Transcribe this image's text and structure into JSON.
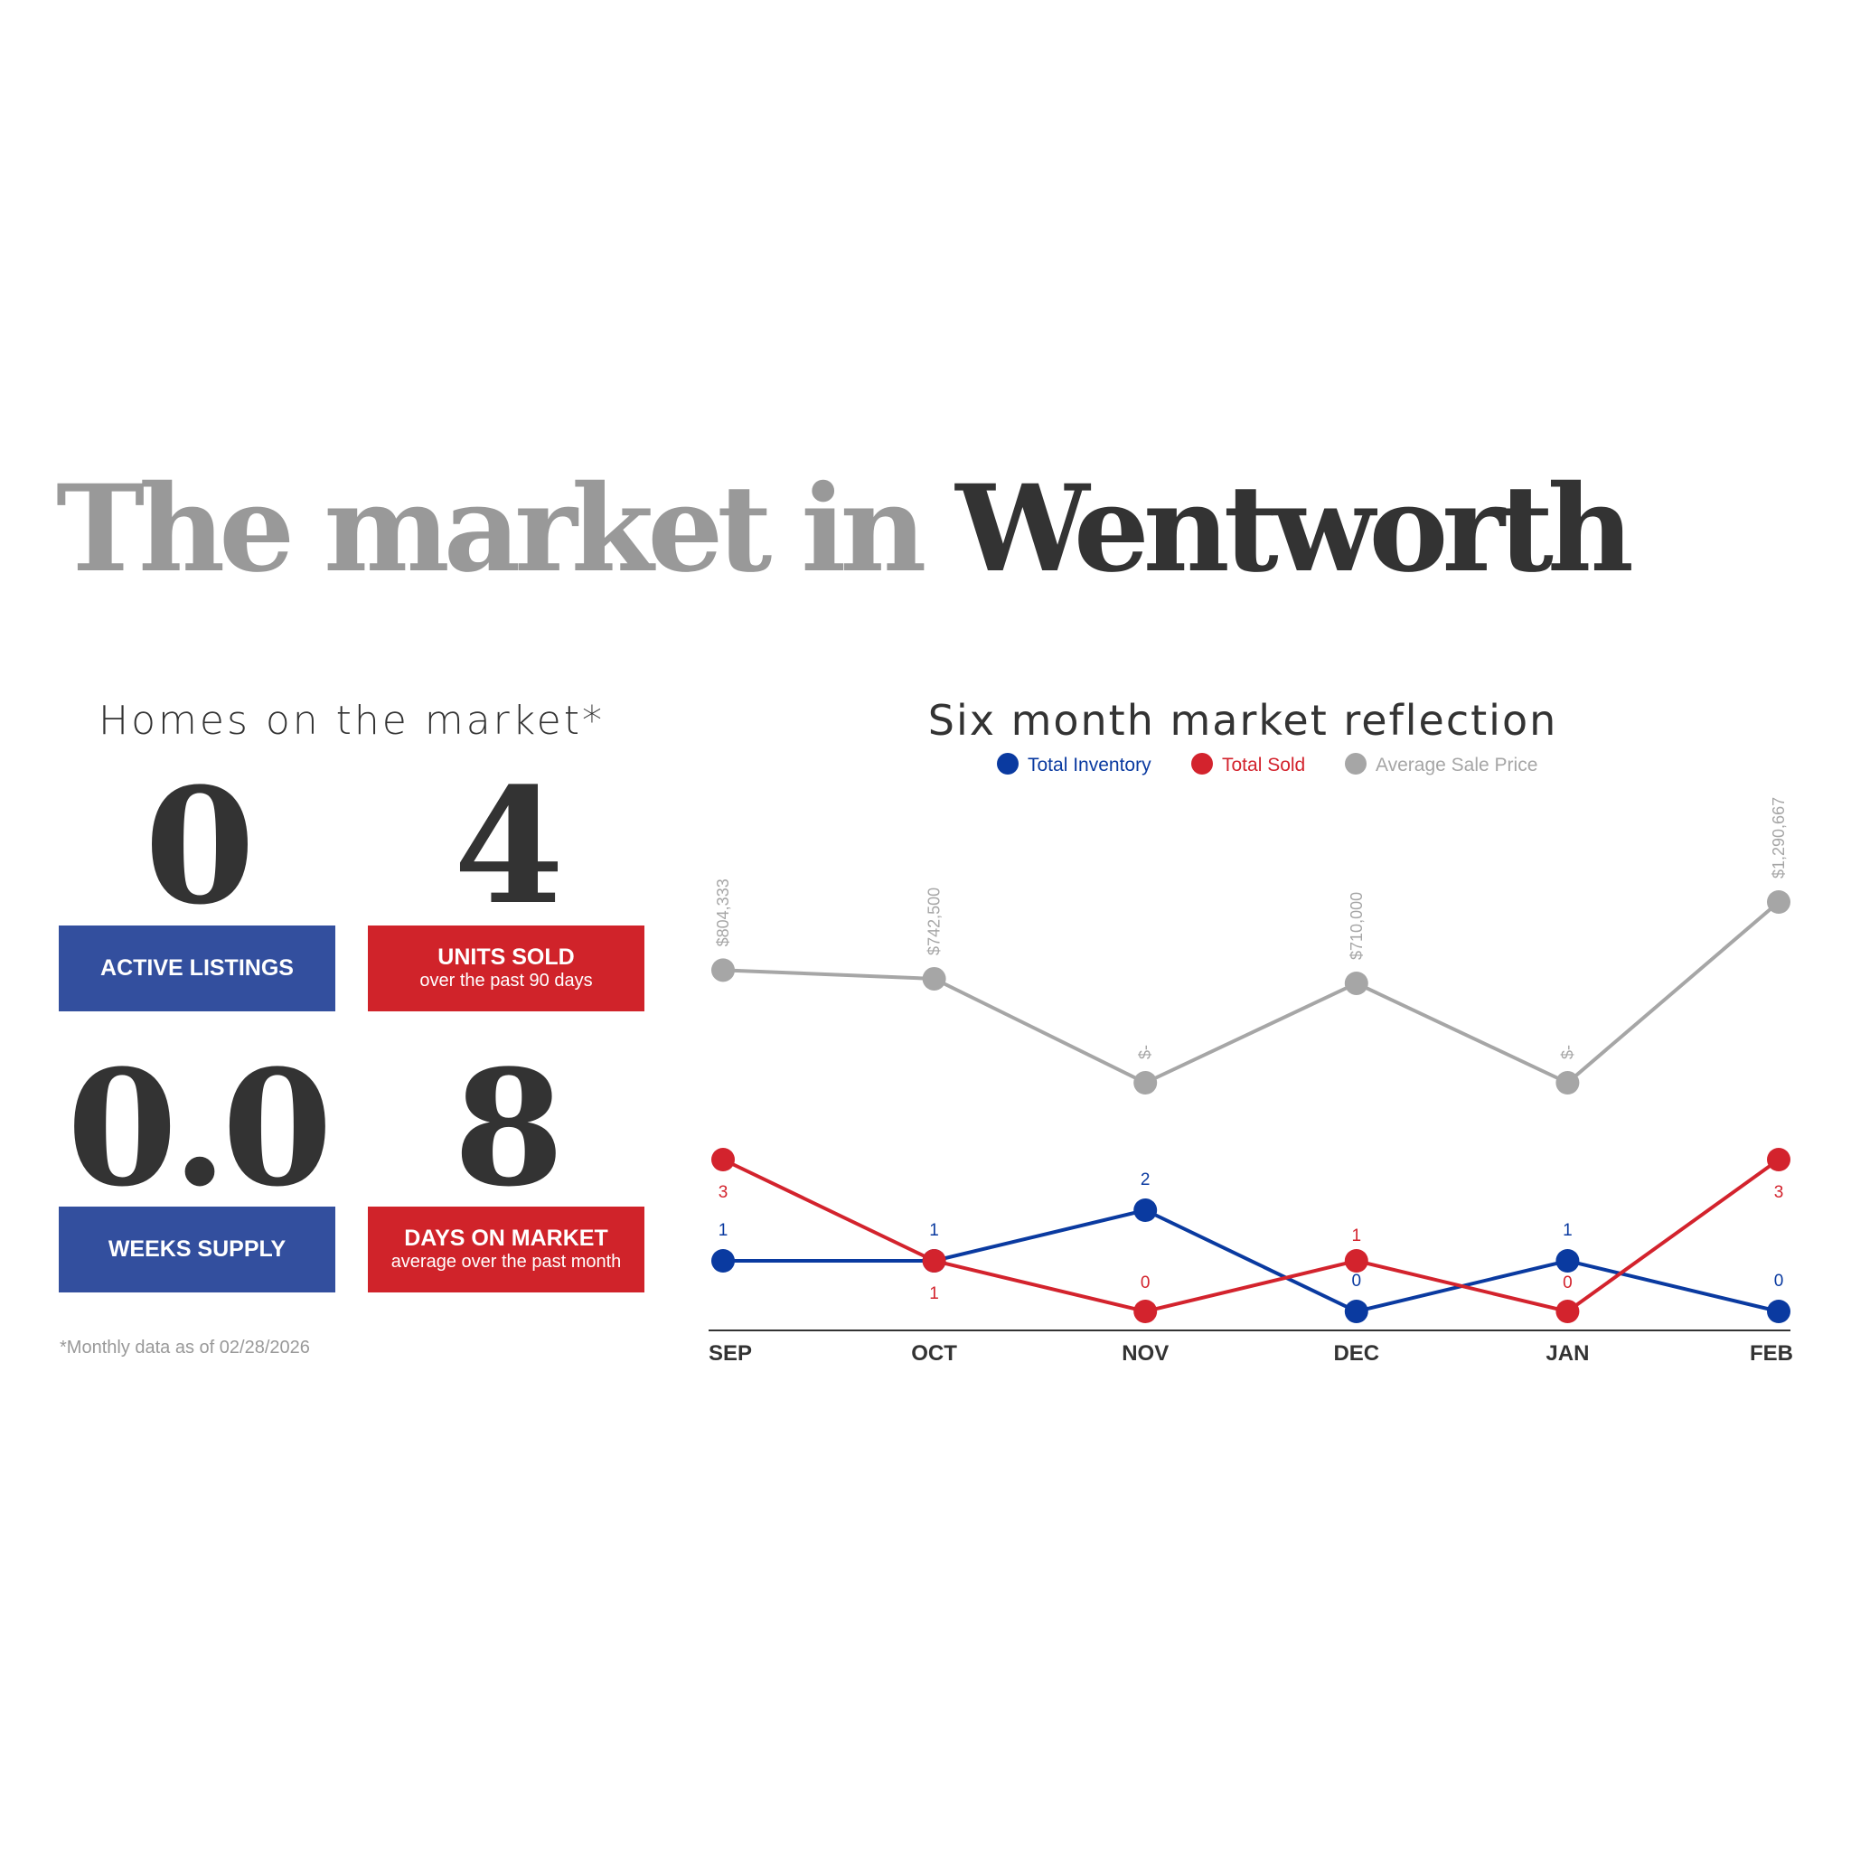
{
  "header": {
    "title_part1": "The market in ",
    "title_part2": "Wentworth"
  },
  "homes": {
    "heading": "Homes on the market*",
    "stats": [
      {
        "value": "0",
        "label": "ACTIVE LISTINGS",
        "sub": ""
      },
      {
        "value": "4",
        "label": "UNITS SOLD",
        "sub": "over the past 90 days"
      },
      {
        "value": "0.0",
        "label": "WEEKS SUPPLY",
        "sub": ""
      },
      {
        "value": "8",
        "label": "DAYS ON MARKET",
        "sub": "average over the past month"
      }
    ],
    "footnote": "*Monthly data as of 02/28/2026"
  },
  "colors": {
    "inventory": "#0a3aa0",
    "sold": "#d3232d",
    "price": "#a6a6a6",
    "box_blue": "#334f9e",
    "box_red": "#d0232a"
  },
  "chart_data": {
    "type": "line",
    "title": "Six month market reflection",
    "categories": [
      "SEP",
      "OCT",
      "NOV",
      "DEC",
      "JAN",
      "FEB"
    ],
    "legend_position": "top",
    "grid": false,
    "series": [
      {
        "name": "Total Inventory",
        "values": [
          1,
          1,
          2,
          0,
          1,
          0
        ],
        "labels": [
          "1",
          "1",
          "2",
          "0",
          "1",
          "0"
        ]
      },
      {
        "name": "Total Sold",
        "values": [
          3,
          1,
          0,
          1,
          0,
          3
        ],
        "labels": [
          "3",
          "1",
          "0",
          "1",
          "0",
          "3"
        ]
      },
      {
        "name": "Average Sale Price",
        "values": [
          804333,
          742500,
          0,
          710000,
          0,
          1290667
        ],
        "labels": [
          "$804,333",
          "$742,500",
          "$-",
          "$710,000",
          "$-",
          "$1,290,667"
        ]
      }
    ]
  }
}
